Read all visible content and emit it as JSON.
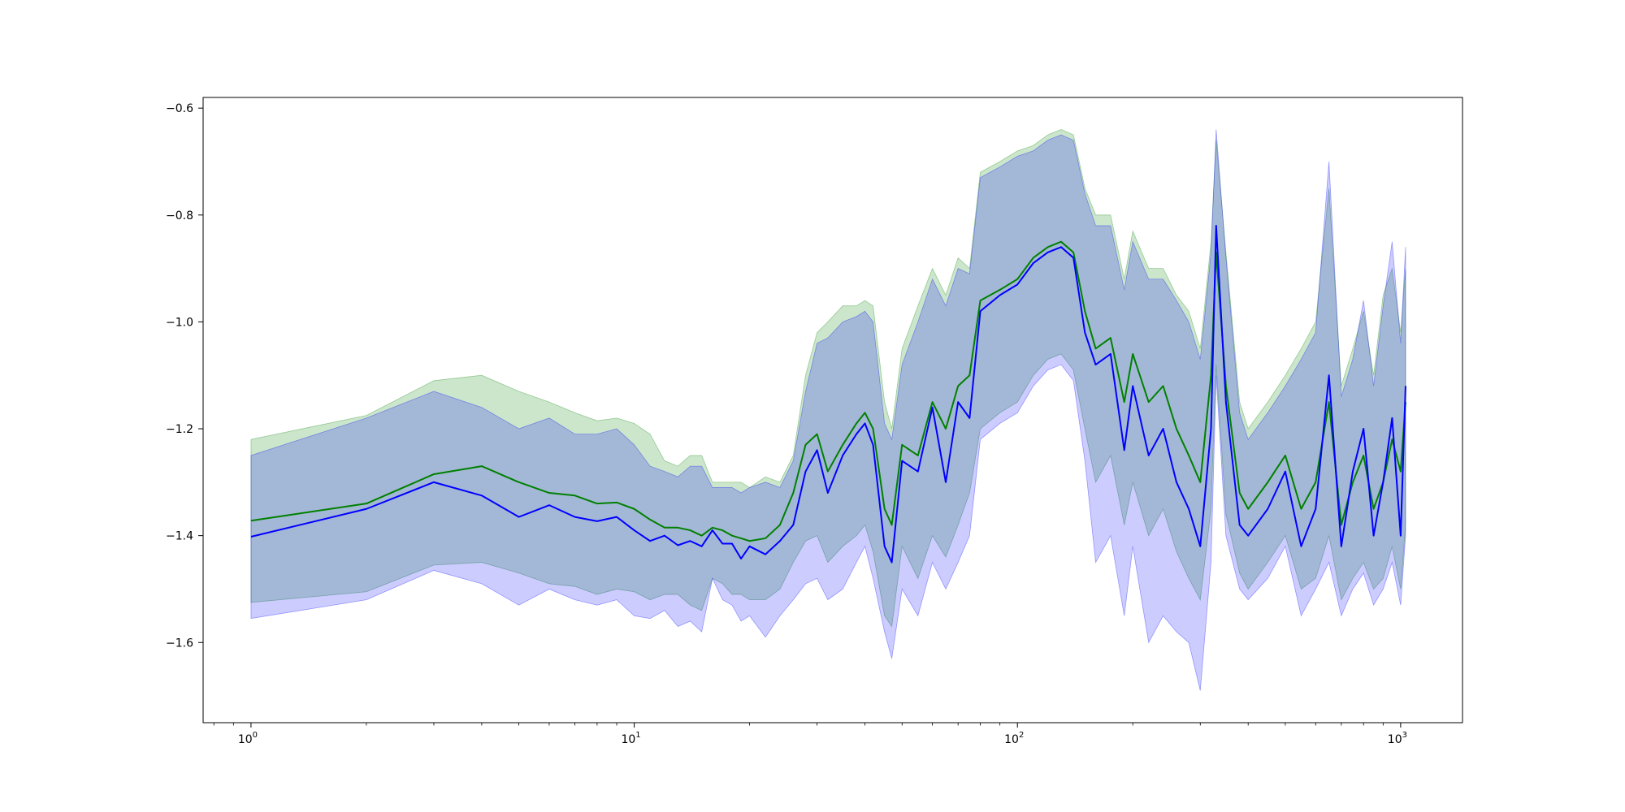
{
  "chart_data": {
    "type": "line",
    "title": "",
    "xlabel": "",
    "ylabel": "",
    "xscale": "log",
    "xlim": [
      0.75,
      1450
    ],
    "ylim": [
      -1.75,
      -0.58
    ],
    "grid": false,
    "legend": "none",
    "x_ticks": [
      {
        "base": "10",
        "exp": "0",
        "value": 1
      },
      {
        "base": "10",
        "exp": "1",
        "value": 10
      },
      {
        "base": "10",
        "exp": "2",
        "value": 100
      },
      {
        "base": "10",
        "exp": "3",
        "value": 1000
      }
    ],
    "y_ticks": [
      {
        "label": "−0.6",
        "value": -0.6
      },
      {
        "label": "−0.8",
        "value": -0.8
      },
      {
        "label": "−1.0",
        "value": -1.0
      },
      {
        "label": "−1.2",
        "value": -1.2
      },
      {
        "label": "−1.4",
        "value": -1.4
      },
      {
        "label": "−1.6",
        "value": -1.6
      }
    ],
    "series": [
      {
        "color": "#008000",
        "band_color": "#008000",
        "band_opacity": 0.2,
        "x": [
          1,
          2,
          3,
          4,
          5,
          6,
          7,
          8,
          9,
          10,
          11,
          12,
          13,
          14,
          15,
          16,
          17,
          18,
          19,
          20,
          22,
          24,
          26,
          28,
          30,
          32,
          35,
          38,
          40,
          42,
          45,
          47,
          50,
          55,
          60,
          65,
          70,
          75,
          80,
          90,
          100,
          110,
          120,
          130,
          140,
          150,
          160,
          175,
          190,
          200,
          220,
          240,
          260,
          280,
          300,
          320,
          330,
          350,
          380,
          400,
          450,
          500,
          550,
          600,
          650,
          700,
          750,
          800,
          850,
          900,
          950,
          1000,
          1030
        ],
        "mean": [
          -1.372,
          -1.34,
          -1.285,
          -1.27,
          -1.3,
          -1.32,
          -1.325,
          -1.34,
          -1.338,
          -1.35,
          -1.37,
          -1.385,
          -1.385,
          -1.39,
          -1.4,
          -1.385,
          -1.39,
          -1.4,
          -1.405,
          -1.41,
          -1.405,
          -1.38,
          -1.32,
          -1.23,
          -1.21,
          -1.28,
          -1.23,
          -1.19,
          -1.17,
          -1.2,
          -1.35,
          -1.38,
          -1.23,
          -1.25,
          -1.15,
          -1.2,
          -1.12,
          -1.1,
          -0.96,
          -0.94,
          -0.92,
          -0.88,
          -0.86,
          -0.85,
          -0.87,
          -0.98,
          -1.05,
          -1.03,
          -1.15,
          -1.06,
          -1.15,
          -1.12,
          -1.2,
          -1.25,
          -1.3,
          -1.1,
          -0.87,
          -1.12,
          -1.32,
          -1.35,
          -1.3,
          -1.25,
          -1.35,
          -1.3,
          -1.15,
          -1.38,
          -1.3,
          -1.25,
          -1.35,
          -1.3,
          -1.22,
          -1.28,
          -1.15
        ],
        "upper": [
          -1.22,
          -1.175,
          -1.11,
          -1.1,
          -1.13,
          -1.15,
          -1.17,
          -1.185,
          -1.18,
          -1.19,
          -1.21,
          -1.26,
          -1.27,
          -1.25,
          -1.25,
          -1.3,
          -1.3,
          -1.3,
          -1.3,
          -1.31,
          -1.29,
          -1.3,
          -1.25,
          -1.1,
          -1.02,
          -1.0,
          -0.97,
          -0.97,
          -0.96,
          -0.97,
          -1.15,
          -1.2,
          -1.05,
          -0.97,
          -0.9,
          -0.95,
          -0.88,
          -0.9,
          -0.72,
          -0.7,
          -0.68,
          -0.67,
          -0.65,
          -0.64,
          -0.65,
          -0.75,
          -0.8,
          -0.8,
          -0.92,
          -0.83,
          -0.9,
          -0.9,
          -0.95,
          -0.98,
          -1.05,
          -0.85,
          -0.66,
          -0.87,
          -1.15,
          -1.2,
          -1.15,
          -1.1,
          -1.05,
          -1.0,
          -0.75,
          -1.12,
          -1.05,
          -0.98,
          -1.1,
          -0.95,
          -0.9,
          -1.02,
          -0.9
        ],
        "lower": [
          -1.525,
          -1.505,
          -1.455,
          -1.45,
          -1.47,
          -1.49,
          -1.495,
          -1.51,
          -1.5,
          -1.505,
          -1.52,
          -1.51,
          -1.51,
          -1.53,
          -1.54,
          -1.48,
          -1.49,
          -1.51,
          -1.51,
          -1.52,
          -1.52,
          -1.5,
          -1.45,
          -1.41,
          -1.4,
          -1.45,
          -1.42,
          -1.4,
          -1.38,
          -1.43,
          -1.55,
          -1.57,
          -1.42,
          -1.48,
          -1.4,
          -1.44,
          -1.38,
          -1.32,
          -1.2,
          -1.17,
          -1.15,
          -1.1,
          -1.07,
          -1.06,
          -1.09,
          -1.2,
          -1.3,
          -1.25,
          -1.38,
          -1.3,
          -1.4,
          -1.35,
          -1.43,
          -1.48,
          -1.52,
          -1.35,
          -1.08,
          -1.36,
          -1.47,
          -1.5,
          -1.45,
          -1.4,
          -1.5,
          -1.48,
          -1.4,
          -1.52,
          -1.48,
          -1.45,
          -1.5,
          -1.48,
          -1.42,
          -1.5,
          -1.38
        ]
      },
      {
        "color": "#0000ff",
        "band_color": "#0000ff",
        "band_opacity": 0.2,
        "x": [
          1,
          2,
          3,
          4,
          5,
          6,
          7,
          8,
          9,
          10,
          11,
          12,
          13,
          14,
          15,
          16,
          17,
          18,
          19,
          20,
          22,
          24,
          26,
          28,
          30,
          32,
          35,
          38,
          40,
          42,
          45,
          47,
          50,
          55,
          60,
          65,
          70,
          75,
          80,
          90,
          100,
          110,
          120,
          130,
          140,
          150,
          160,
          175,
          190,
          200,
          220,
          240,
          260,
          280,
          300,
          320,
          330,
          350,
          380,
          400,
          450,
          500,
          550,
          600,
          650,
          700,
          750,
          800,
          850,
          900,
          950,
          1000,
          1030
        ],
        "mean": [
          -1.402,
          -1.35,
          -1.3,
          -1.325,
          -1.365,
          -1.343,
          -1.365,
          -1.373,
          -1.365,
          -1.39,
          -1.41,
          -1.4,
          -1.418,
          -1.41,
          -1.42,
          -1.39,
          -1.415,
          -1.415,
          -1.443,
          -1.42,
          -1.435,
          -1.41,
          -1.38,
          -1.28,
          -1.24,
          -1.32,
          -1.25,
          -1.21,
          -1.19,
          -1.23,
          -1.42,
          -1.45,
          -1.26,
          -1.28,
          -1.16,
          -1.3,
          -1.15,
          -1.18,
          -0.98,
          -0.95,
          -0.93,
          -0.89,
          -0.87,
          -0.86,
          -0.88,
          -1.02,
          -1.08,
          -1.06,
          -1.24,
          -1.12,
          -1.25,
          -1.2,
          -1.3,
          -1.35,
          -1.42,
          -1.2,
          -0.82,
          -1.15,
          -1.38,
          -1.4,
          -1.35,
          -1.28,
          -1.42,
          -1.35,
          -1.1,
          -1.42,
          -1.28,
          -1.2,
          -1.4,
          -1.3,
          -1.18,
          -1.4,
          -1.12
        ],
        "upper": [
          -1.25,
          -1.18,
          -1.13,
          -1.16,
          -1.2,
          -1.18,
          -1.21,
          -1.21,
          -1.2,
          -1.23,
          -1.27,
          -1.28,
          -1.29,
          -1.27,
          -1.27,
          -1.31,
          -1.31,
          -1.31,
          -1.32,
          -1.31,
          -1.3,
          -1.31,
          -1.26,
          -1.13,
          -1.04,
          -1.03,
          -1.0,
          -0.99,
          -0.98,
          -1.0,
          -1.19,
          -1.22,
          -1.08,
          -1.0,
          -0.92,
          -0.97,
          -0.9,
          -0.91,
          -0.73,
          -0.71,
          -0.69,
          -0.68,
          -0.66,
          -0.65,
          -0.66,
          -0.76,
          -0.82,
          -0.82,
          -0.94,
          -0.85,
          -0.92,
          -0.92,
          -0.96,
          -1.0,
          -1.07,
          -0.87,
          -0.64,
          -0.88,
          -1.17,
          -1.22,
          -1.17,
          -1.12,
          -1.07,
          -1.02,
          -0.7,
          -1.14,
          -1.07,
          -0.96,
          -1.12,
          -0.97,
          -0.85,
          -1.04,
          -0.86
        ],
        "lower": [
          -1.555,
          -1.52,
          -1.465,
          -1.49,
          -1.53,
          -1.5,
          -1.52,
          -1.53,
          -1.52,
          -1.55,
          -1.555,
          -1.54,
          -1.57,
          -1.56,
          -1.58,
          -1.48,
          -1.52,
          -1.53,
          -1.56,
          -1.55,
          -1.59,
          -1.55,
          -1.52,
          -1.49,
          -1.48,
          -1.52,
          -1.5,
          -1.45,
          -1.42,
          -1.48,
          -1.58,
          -1.63,
          -1.5,
          -1.55,
          -1.45,
          -1.5,
          -1.45,
          -1.4,
          -1.22,
          -1.19,
          -1.17,
          -1.12,
          -1.09,
          -1.08,
          -1.11,
          -1.26,
          -1.45,
          -1.4,
          -1.55,
          -1.42,
          -1.6,
          -1.55,
          -1.58,
          -1.6,
          -1.69,
          -1.45,
          -1.1,
          -1.4,
          -1.5,
          -1.52,
          -1.48,
          -1.42,
          -1.55,
          -1.5,
          -1.45,
          -1.55,
          -1.5,
          -1.47,
          -1.53,
          -1.5,
          -1.45,
          -1.53,
          -1.4
        ]
      }
    ]
  }
}
